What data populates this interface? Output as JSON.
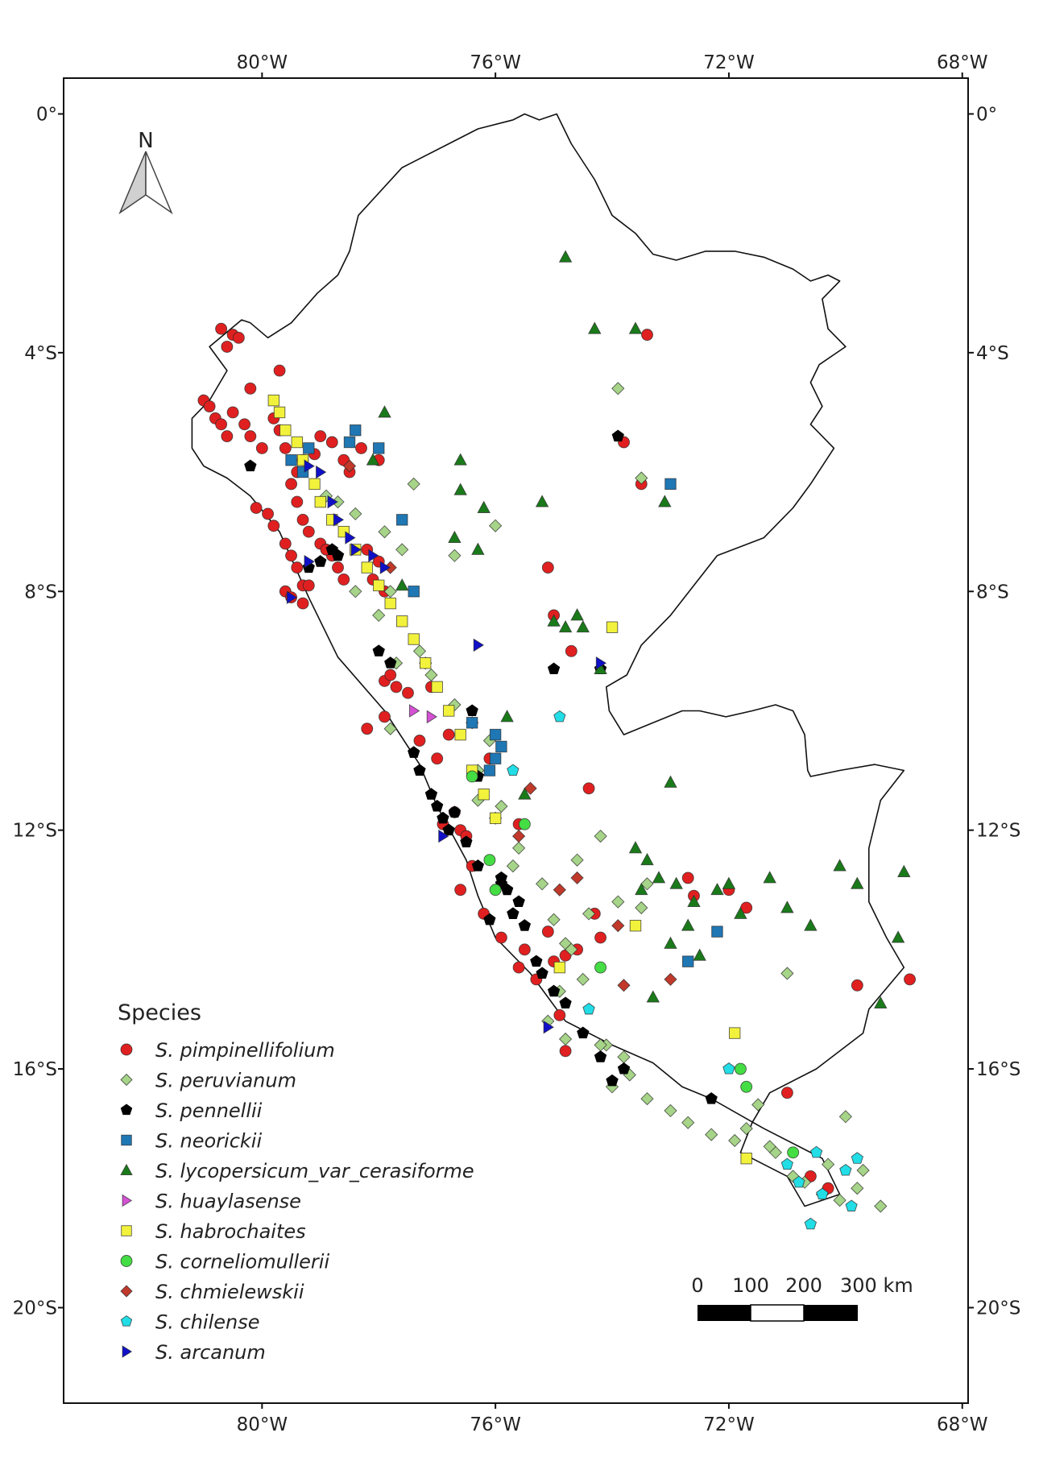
{
  "chart_data": {
    "type": "scatter",
    "title": "",
    "xlabel": "",
    "ylabel": "",
    "xlim": [
      -83.4,
      -67.9
    ],
    "ylim": [
      -21.6,
      0.6
    ],
    "x_ticks": [
      -80,
      -76,
      -72,
      -68
    ],
    "x_tick_labels": [
      "80°W",
      "76°W",
      "72°W",
      "68°W"
    ],
    "y_ticks": [
      0,
      -4,
      -8,
      -12,
      -16,
      -20
    ],
    "y_tick_labels": [
      "0°",
      "4°S",
      "8°S",
      "12°S",
      "16°S",
      "20°S"
    ],
    "north_arrow": "N",
    "legend": {
      "title": "Species",
      "placement": "bottom-left"
    },
    "scale_bar": {
      "labels": [
        "0",
        "100",
        "200",
        "300 km"
      ]
    },
    "country_outline": {
      "lon": [
        -75.25,
        -74.95,
        -74.7,
        -74.3,
        -74.0,
        -73.6,
        -73.3,
        -72.9,
        -72.4,
        -71.9,
        -71.4,
        -70.9,
        -70.6,
        -70.3,
        -70.1,
        -70.4,
        -70.3,
        -70.0,
        -70.45,
        -70.6,
        -70.4,
        -70.6,
        -70.2,
        -70.6,
        -70.9,
        -71.4,
        -72.2,
        -72.6,
        -73.0,
        -73.5,
        -73.75,
        -74.1,
        -74.05,
        -73.8,
        -73.3,
        -72.8,
        -72.5,
        -72.05,
        -71.6,
        -71.2,
        -70.9,
        -70.7,
        -70.65,
        -70.6,
        -70.1,
        -69.5,
        -69.0,
        -69.4,
        -69.6,
        -69.6,
        -69.3,
        -69.0,
        -69.6,
        -69.7,
        -70.5,
        -71.3,
        -71.6,
        -71.8,
        -71.0,
        -70.7,
        -70.1,
        -70.4,
        -71.4,
        -72.3,
        -72.8,
        -73.3,
        -74.0,
        -74.8,
        -75.4,
        -76.0,
        -76.3,
        -76.5,
        -77.0,
        -77.3,
        -77.9,
        -78.7,
        -79.2,
        -79.7,
        -80.2,
        -80.6,
        -81.0,
        -81.2,
        -81.2,
        -80.9,
        -80.6,
        -80.9,
        -80.35,
        -80.2,
        -79.9,
        -79.5,
        -79.05,
        -78.7,
        -78.5,
        -78.35,
        -77.6,
        -76.8,
        -76.3,
        -75.7,
        -75.5,
        -75.25
      ],
      "lat": [
        -0.1,
        0.0,
        -0.5,
        -1.1,
        -1.7,
        -2.0,
        -2.35,
        -2.45,
        -2.3,
        -2.3,
        -2.4,
        -2.6,
        -2.8,
        -2.7,
        -2.8,
        -3.1,
        -3.6,
        -3.9,
        -4.2,
        -4.5,
        -4.9,
        -5.2,
        -5.6,
        -6.2,
        -6.6,
        -7.1,
        -7.4,
        -7.9,
        -8.4,
        -8.9,
        -9.4,
        -9.6,
        -10.0,
        -10.4,
        -10.2,
        -10.0,
        -10.0,
        -10.1,
        -10.0,
        -9.9,
        -10.0,
        -10.4,
        -11.0,
        -11.1,
        -11.0,
        -10.9,
        -11.0,
        -11.5,
        -12.3,
        -13.2,
        -13.8,
        -14.3,
        -15.0,
        -15.4,
        -16.0,
        -16.4,
        -16.9,
        -17.4,
        -17.8,
        -18.3,
        -18.1,
        -17.5,
        -17.0,
        -16.5,
        -16.3,
        -15.9,
        -15.6,
        -15.2,
        -14.4,
        -13.8,
        -13.1,
        -12.5,
        -11.6,
        -10.9,
        -10.0,
        -9.1,
        -8.1,
        -7.0,
        -6.4,
        -6.1,
        -5.9,
        -5.6,
        -5.1,
        -4.8,
        -4.3,
        -3.9,
        -3.45,
        -3.5,
        -3.75,
        -3.5,
        -3.0,
        -2.7,
        -2.3,
        -1.7,
        -0.9,
        -0.5,
        -0.25,
        -0.1,
        0.0,
        -0.1
      ]
    },
    "series": [
      {
        "name": "S. pimpinellifolium",
        "marker": "circle",
        "color": "#e02020",
        "x": [
          -80.7,
          -80.5,
          -80.4,
          -80.6,
          -81.0,
          -80.9,
          -80.8,
          -80.7,
          -80.6,
          -80.5,
          -80.3,
          -80.2,
          -80.0,
          -79.8,
          -79.7,
          -79.6,
          -79.5,
          -79.4,
          -79.3,
          -79.2,
          -79.0,
          -78.8,
          -78.7,
          -78.6,
          -80.1,
          -79.9,
          -79.8,
          -79.6,
          -79.5,
          -79.4,
          -79.3,
          -79.6,
          -79.5,
          -79.3,
          -79.2,
          -79.4,
          -79.1,
          -79.3,
          -79.0,
          -78.8,
          -78.6,
          -78.5,
          -78.3,
          -78.0,
          -78.9,
          -78.2,
          -78.1,
          -78.0,
          -77.9,
          -77.9,
          -77.7,
          -77.8,
          -77.5,
          -77.9,
          -78.2,
          -77.3,
          -77.0,
          -76.7,
          -76.6,
          -76.9,
          -76.5,
          -76.4,
          -76.6,
          -76.2,
          -75.9,
          -75.1,
          -75.0,
          -75.5,
          -75.6,
          -75.3,
          -74.8,
          -74.6,
          -74.3,
          -74.2,
          -74.8,
          -74.9,
          -74.4,
          -72.7,
          -72.6,
          -72.0,
          -71.7,
          -71.0,
          -70.6,
          -70.3,
          -69.8,
          -68.9,
          -73.8,
          -73.4,
          -73.5,
          -75.0,
          -75.1,
          -74.7,
          -79.7,
          -80.2,
          -76.1,
          -75.6,
          -76.8,
          -77.1
        ],
        "y": [
          -3.6,
          -3.7,
          -3.75,
          -3.9,
          -4.8,
          -4.9,
          -5.1,
          -5.2,
          -5.4,
          -5.0,
          -5.2,
          -5.4,
          -5.6,
          -5.1,
          -5.3,
          -5.6,
          -6.2,
          -6.5,
          -6.8,
          -7.0,
          -7.2,
          -7.4,
          -7.6,
          -7.8,
          -6.6,
          -6.7,
          -6.9,
          -7.2,
          -7.4,
          -7.6,
          -7.9,
          -8.0,
          -8.1,
          -8.2,
          -7.9,
          -6.0,
          -5.7,
          -5.8,
          -5.4,
          -5.5,
          -5.8,
          -6.0,
          -5.6,
          -5.8,
          -7.3,
          -7.3,
          -7.8,
          -7.5,
          -8.0,
          -9.5,
          -9.6,
          -9.4,
          -9.7,
          -10.1,
          -10.3,
          -10.5,
          -10.8,
          -11.7,
          -12.0,
          -11.9,
          -12.1,
          -12.6,
          -13.0,
          -13.4,
          -13.8,
          -13.7,
          -14.2,
          -14.0,
          -14.3,
          -14.5,
          -14.1,
          -14.0,
          -13.4,
          -13.8,
          -15.7,
          -15.1,
          -11.3,
          -12.8,
          -13.1,
          -13.0,
          -13.3,
          -16.4,
          -17.8,
          -18.0,
          -14.6,
          -14.5,
          -5.5,
          -3.7,
          -6.2,
          -8.4,
          -7.6,
          -9.0,
          -4.3,
          -4.6,
          -10.8,
          -11.9,
          -10.4,
          -9.6
        ]
      },
      {
        "name": "S. peruvianum",
        "marker": "diamond",
        "color": "#a6d488",
        "x": [
          -78.9,
          -78.7,
          -78.4,
          -77.9,
          -77.6,
          -77.8,
          -78.0,
          -77.3,
          -77.2,
          -77.1,
          -76.7,
          -76.4,
          -76.1,
          -76.3,
          -76.0,
          -75.9,
          -75.6,
          -75.7,
          -75.2,
          -75.0,
          -74.8,
          -74.5,
          -74.1,
          -73.8,
          -73.9,
          -73.5,
          -73.4,
          -74.2,
          -74.4,
          -74.7,
          -74.9,
          -75.1,
          -74.8,
          -74.2,
          -74.0,
          -73.7,
          -73.4,
          -73.0,
          -72.7,
          -72.3,
          -71.9,
          -71.7,
          -71.5,
          -71.2,
          -70.9,
          -70.7,
          -70.4,
          -70.1,
          -69.8,
          -69.7,
          -69.4,
          -70.3,
          -70.0,
          -71.0,
          -71.3,
          -73.9,
          -73.5,
          -76.0,
          -77.4,
          -76.7,
          -77.7,
          -78.4,
          -77.8,
          -76.3,
          -74.6
        ],
        "y": [
          -6.4,
          -6.5,
          -6.7,
          -7.0,
          -7.3,
          -8.0,
          -8.4,
          -9.0,
          -9.2,
          -9.4,
          -9.9,
          -10.2,
          -10.5,
          -11.0,
          -11.8,
          -11.6,
          -12.3,
          -12.6,
          -12.9,
          -13.5,
          -13.9,
          -14.5,
          -15.6,
          -15.8,
          -13.2,
          -13.3,
          -12.9,
          -12.1,
          -13.4,
          -14.0,
          -14.7,
          -15.2,
          -15.5,
          -15.6,
          -16.3,
          -16.1,
          -16.5,
          -16.7,
          -16.9,
          -17.1,
          -17.2,
          -17.0,
          -16.6,
          -17.4,
          -17.8,
          -17.9,
          -18.1,
          -18.2,
          -18.0,
          -17.7,
          -18.3,
          -17.6,
          -16.8,
          -14.4,
          -17.3,
          -4.6,
          -6.1,
          -6.9,
          -6.2,
          -7.4,
          -9.2,
          -8.0,
          -10.3,
          -11.5,
          -12.5
        ]
      },
      {
        "name": "S. pennellii",
        "marker": "pentagon",
        "color": "#000000",
        "x": [
          -78.8,
          -78.7,
          -78.0,
          -77.8,
          -77.4,
          -77.3,
          -77.1,
          -77.0,
          -76.9,
          -76.8,
          -76.7,
          -76.5,
          -76.3,
          -76.1,
          -75.9,
          -75.6,
          -75.5,
          -75.3,
          -75.2,
          -75.0,
          -74.8,
          -74.5,
          -74.2,
          -73.8,
          -72.3,
          -76.3,
          -75.8,
          -74.0,
          -73.9,
          -74.2,
          -75.0,
          -79.0,
          -79.2,
          -80.2,
          -76.4,
          -75.9,
          -75.7
        ],
        "y": [
          -7.3,
          -7.4,
          -9.0,
          -9.2,
          -10.7,
          -11.0,
          -11.4,
          -11.6,
          -11.8,
          -12.0,
          -11.7,
          -12.2,
          -12.6,
          -13.5,
          -12.8,
          -13.2,
          -13.6,
          -14.2,
          -14.4,
          -14.7,
          -14.9,
          -15.4,
          -15.8,
          -16.0,
          -16.5,
          -11.1,
          -13.0,
          -16.2,
          -5.4,
          -9.3,
          -9.3,
          -7.5,
          -7.6,
          -5.9,
          -10.0,
          -12.9,
          -13.4
        ]
      },
      {
        "name": "S. neorickii",
        "marker": "square",
        "color": "#1f77b4",
        "x": [
          -79.2,
          -79.5,
          -78.5,
          -78.0,
          -77.6,
          -77.4,
          -76.4,
          -76.0,
          -75.9,
          -76.1,
          -76.0,
          -73.0,
          -72.2,
          -72.7,
          -78.4,
          -79.3
        ],
        "y": [
          -5.6,
          -5.8,
          -5.5,
          -5.6,
          -6.8,
          -8.0,
          -10.2,
          -10.4,
          -10.6,
          -11.0,
          -10.8,
          -6.2,
          -13.7,
          -14.2,
          -5.3,
          -6.0
        ]
      },
      {
        "name": "S. lycopersicum_var_cerasiforme",
        "marker": "triangle",
        "color": "#1a7a1a",
        "x": [
          -74.8,
          -74.3,
          -73.6,
          -73.1,
          -74.6,
          -74.5,
          -76.6,
          -76.2,
          -76.3,
          -75.2,
          -75.0,
          -73.4,
          -73.2,
          -73.5,
          -72.9,
          -72.6,
          -72.0,
          -71.8,
          -71.3,
          -71.0,
          -70.6,
          -70.1,
          -69.8,
          -69.4,
          -69.1,
          -69.0,
          -72.5,
          -72.7,
          -73.0,
          -74.8,
          -74.2,
          -73.3,
          -73.6,
          -76.7,
          -76.6,
          -75.5,
          -73.0,
          -72.2,
          -77.9,
          -78.1,
          -77.6,
          -75.8
        ],
        "y": [
          -2.4,
          -3.6,
          -3.6,
          -6.5,
          -8.4,
          -8.6,
          -6.3,
          -6.6,
          -7.3,
          -6.5,
          -8.5,
          -12.5,
          -12.8,
          -13.0,
          -12.9,
          -13.2,
          -12.9,
          -13.4,
          -12.8,
          -13.3,
          -13.6,
          -12.6,
          -12.9,
          -14.9,
          -13.8,
          -12.7,
          -14.1,
          -13.6,
          -13.9,
          -8.6,
          -9.3,
          -14.8,
          -12.3,
          -7.1,
          -5.8,
          -11.4,
          -11.2,
          -13.0,
          -5.0,
          -5.8,
          -7.9,
          -10.1
        ]
      },
      {
        "name": "S. huaylasense",
        "marker": "triangle-right",
        "color": "#d451d4",
        "x": [
          -77.4,
          -77.1
        ],
        "y": [
          -10.0,
          -10.1
        ]
      },
      {
        "name": "S. habrochaites",
        "marker": "square",
        "color": "#f2f23c",
        "x": [
          -79.8,
          -79.7,
          -79.6,
          -79.4,
          -79.3,
          -79.1,
          -79.0,
          -78.8,
          -78.6,
          -78.4,
          -78.2,
          -78.0,
          -77.8,
          -77.6,
          -77.4,
          -77.2,
          -77.0,
          -76.8,
          -76.6,
          -76.4,
          -76.2,
          -76.0,
          -74.0,
          -71.9,
          -71.7,
          -74.9,
          -73.6
        ],
        "y": [
          -4.8,
          -5.0,
          -5.3,
          -5.5,
          -5.8,
          -6.2,
          -6.5,
          -6.8,
          -7.0,
          -7.3,
          -7.6,
          -7.9,
          -8.2,
          -8.5,
          -8.8,
          -9.2,
          -9.6,
          -10.0,
          -10.4,
          -11.0,
          -11.4,
          -11.8,
          -8.6,
          -15.4,
          -17.5,
          -14.3,
          -13.6
        ]
      },
      {
        "name": "S. corneliomullerii",
        "marker": "circle",
        "color": "#44dd44",
        "x": [
          -76.4,
          -76.1,
          -75.5,
          -74.2,
          -71.8,
          -71.7,
          -70.9,
          -76.0
        ],
        "y": [
          -11.1,
          -12.5,
          -11.9,
          -14.3,
          -16.0,
          -16.3,
          -17.4,
          -13.0
        ]
      },
      {
        "name": "S. chmielewskii",
        "marker": "diamond",
        "color": "#c0392b",
        "x": [
          -75.6,
          -75.4,
          -74.9,
          -74.6,
          -73.9,
          -73.8,
          -73.0,
          -78.5,
          -77.8
        ],
        "y": [
          -12.1,
          -11.3,
          -13.0,
          -12.8,
          -13.6,
          -14.6,
          -14.5,
          -5.9,
          -7.6
        ]
      },
      {
        "name": "S. chilense",
        "marker": "pentagon",
        "color": "#22dde6",
        "x": [
          -75.7,
          -74.9,
          -74.4,
          -72.0,
          -71.0,
          -70.8,
          -70.5,
          -70.4,
          -70.0,
          -69.8,
          -69.9,
          -70.6
        ],
        "y": [
          -11.0,
          -10.1,
          -15.0,
          -16.0,
          -17.6,
          -17.9,
          -17.4,
          -18.1,
          -17.7,
          -17.5,
          -18.3,
          -18.6
        ]
      },
      {
        "name": "S. arcanum",
        "marker": "triangle-right",
        "color": "#1010c8",
        "x": [
          -79.2,
          -79.0,
          -78.8,
          -78.7,
          -78.5,
          -78.4,
          -78.1,
          -77.9,
          -76.3,
          -74.2,
          -75.1,
          -76.9,
          -79.5,
          -79.2
        ],
        "y": [
          -5.9,
          -6.0,
          -6.5,
          -6.8,
          -7.1,
          -7.3,
          -7.4,
          -7.6,
          -8.9,
          -9.2,
          -15.3,
          -12.1,
          -8.1,
          -7.5
        ]
      }
    ]
  }
}
